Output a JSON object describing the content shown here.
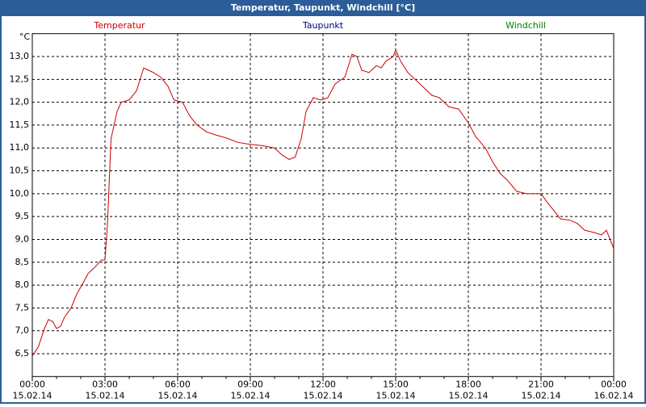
{
  "chart_data": {
    "type": "line",
    "title": "Temperatur, Taupunkt, Windchill [°C]",
    "y_unit": "°C",
    "legend": [
      {
        "name": "Temperatur",
        "color": "#cc0000"
      },
      {
        "name": "Taupunkt",
        "color": "#000080"
      },
      {
        "name": "Windchill",
        "color": "#008000"
      }
    ],
    "series": [
      {
        "name": "Temperatur",
        "color": "#cc0000",
        "x": [
          0,
          0.25,
          0.5,
          0.67,
          0.85,
          1.0,
          1.17,
          1.33,
          1.6,
          1.83,
          2.1,
          2.3,
          2.6,
          2.85,
          3.0,
          3.1,
          3.25,
          3.5,
          3.67,
          4.0,
          4.3,
          4.6,
          4.8,
          5.0,
          5.3,
          5.6,
          5.85,
          6.2,
          6.5,
          6.8,
          7.2,
          7.6,
          8.0,
          8.5,
          9.0,
          9.5,
          10.0,
          10.3,
          10.6,
          10.85,
          11.1,
          11.3,
          11.6,
          11.9,
          12.2,
          12.5,
          12.9,
          13.2,
          13.4,
          13.6,
          13.9,
          14.2,
          14.4,
          14.6,
          14.9,
          15.0,
          15.2,
          15.5,
          15.8,
          16.2,
          16.5,
          16.8,
          17.2,
          17.6,
          18.0,
          18.3,
          18.7,
          19.0,
          19.3,
          19.6,
          20.0,
          20.4,
          20.8,
          21.0,
          21.2,
          21.5,
          21.8,
          22.2,
          22.5,
          22.8,
          23.2,
          23.5,
          23.7,
          23.85,
          24
        ],
        "values": [
          6.45,
          6.65,
          7.05,
          7.25,
          7.2,
          7.05,
          7.1,
          7.3,
          7.5,
          7.8,
          8.05,
          8.25,
          8.4,
          8.55,
          8.55,
          9.3,
          11.2,
          11.8,
          12.0,
          12.05,
          12.25,
          12.75,
          12.7,
          12.65,
          12.55,
          12.35,
          12.05,
          12.0,
          11.7,
          11.5,
          11.35,
          11.28,
          11.22,
          11.12,
          11.08,
          11.05,
          11.0,
          10.85,
          10.75,
          10.8,
          11.2,
          11.8,
          12.1,
          12.05,
          12.1,
          12.4,
          12.55,
          13.05,
          13.0,
          12.7,
          12.65,
          12.8,
          12.75,
          12.9,
          13.0,
          13.15,
          12.9,
          12.65,
          12.5,
          12.3,
          12.15,
          12.1,
          11.9,
          11.85,
          11.55,
          11.25,
          11.0,
          10.7,
          10.45,
          10.3,
          10.05,
          10.0,
          10.0,
          10.0,
          9.85,
          9.65,
          9.45,
          9.42,
          9.35,
          9.2,
          9.15,
          9.1,
          9.2,
          9.0,
          8.8
        ]
      }
    ],
    "xlim": [
      0,
      24
    ],
    "xticks": [
      {
        "value": 0,
        "label": "00:00"
      },
      {
        "value": 3,
        "label": "03:00"
      },
      {
        "value": 6,
        "label": "06:00"
      },
      {
        "value": 9,
        "label": "09:00"
      },
      {
        "value": 12,
        "label": "12:00"
      },
      {
        "value": 15,
        "label": "15:00"
      },
      {
        "value": 18,
        "label": "18:00"
      },
      {
        "value": 21,
        "label": "21:00"
      },
      {
        "value": 24,
        "label": "00:00"
      }
    ],
    "xtick_dates": [
      "15.02.14",
      "15.02.14",
      "15.02.14",
      "15.02.14",
      "15.02.14",
      "15.02.14",
      "15.02.14",
      "15.02.14",
      "16.02.14"
    ],
    "xminorticks": [
      0,
      1,
      2,
      3,
      4,
      5,
      6,
      7,
      8,
      9,
      10,
      11,
      12,
      13,
      14,
      15,
      16,
      17,
      18,
      19,
      20,
      21,
      22,
      23,
      24
    ],
    "ylim": [
      6.0,
      13.5
    ],
    "yticks": [
      {
        "value": 6.5,
        "label": "6,5"
      },
      {
        "value": 7.0,
        "label": "7,0"
      },
      {
        "value": 7.5,
        "label": "7,5"
      },
      {
        "value": 8.0,
        "label": "8,0"
      },
      {
        "value": 8.5,
        "label": "8,5"
      },
      {
        "value": 9.0,
        "label": "9,0"
      },
      {
        "value": 9.5,
        "label": "9,5"
      },
      {
        "value": 10.0,
        "label": "10,0"
      },
      {
        "value": 10.5,
        "label": "10,5"
      },
      {
        "value": 11.0,
        "label": "11,0"
      },
      {
        "value": 11.5,
        "label": "11,5"
      },
      {
        "value": 12.0,
        "label": "12,0"
      },
      {
        "value": 12.5,
        "label": "12,5"
      },
      {
        "value": 13.0,
        "label": "13,0"
      }
    ],
    "grid": true
  }
}
